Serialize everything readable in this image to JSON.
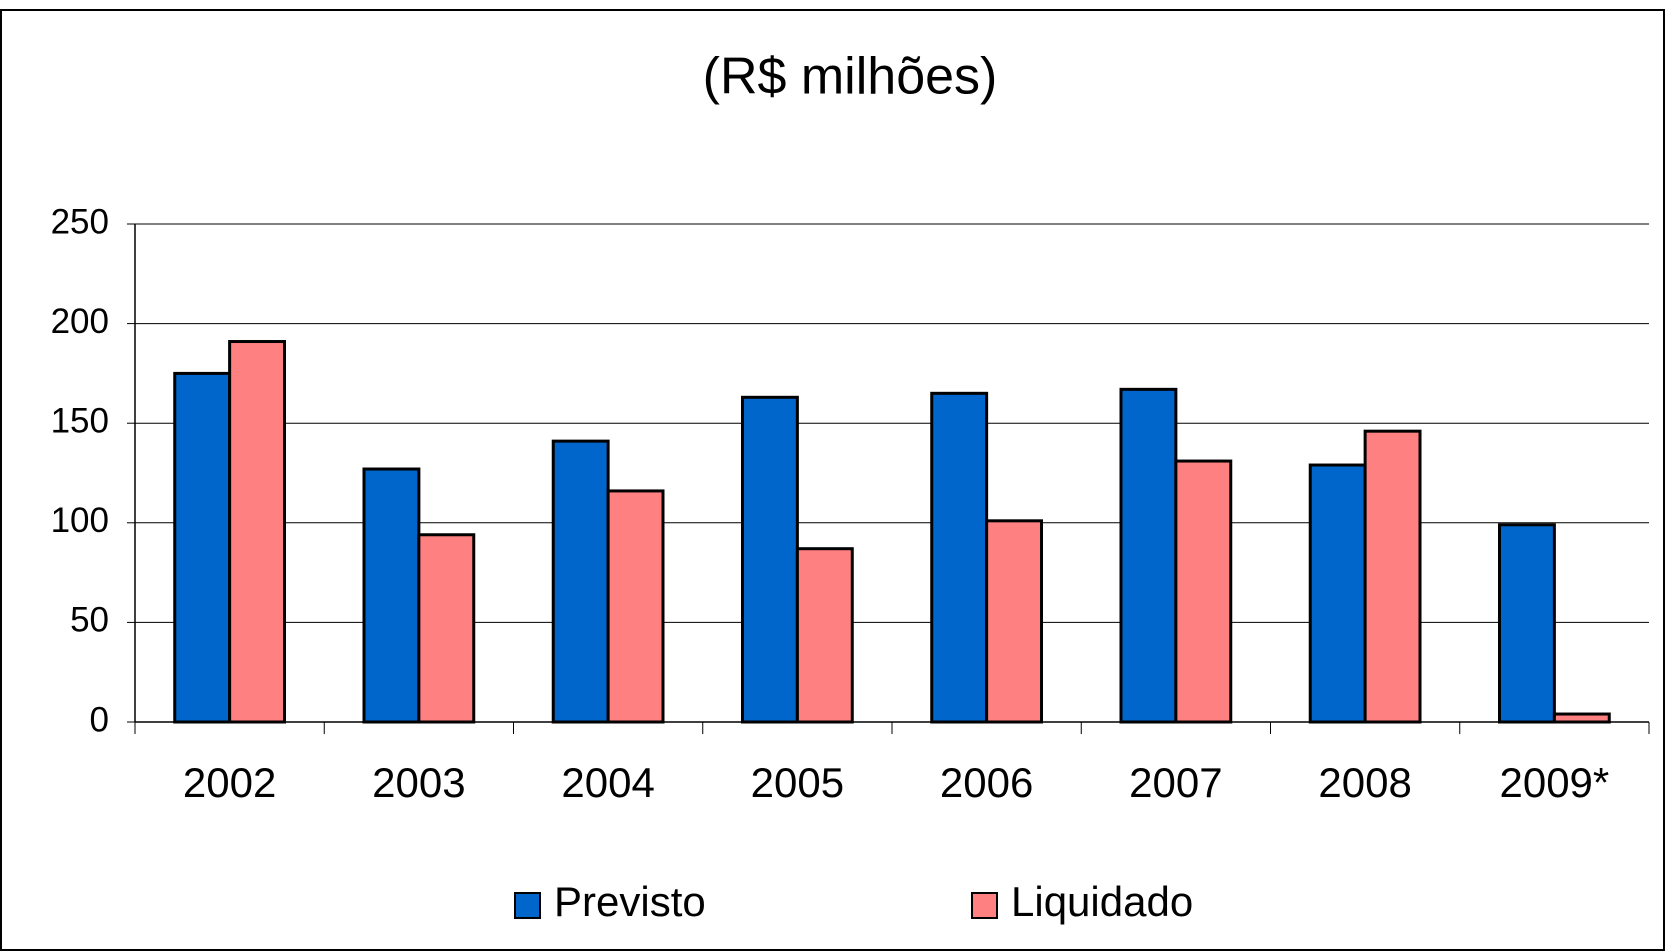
{
  "chart_data": {
    "type": "bar",
    "title": "(R$ milhões)",
    "categories": [
      "2002",
      "2003",
      "2004",
      "2005",
      "2006",
      "2007",
      "2008",
      "2009*"
    ],
    "series": [
      {
        "name": "Previsto",
        "color": "#0066cc",
        "values": [
          175,
          127,
          141,
          163,
          165,
          167,
          129,
          99
        ]
      },
      {
        "name": "Liquidado",
        "color": "#ff8080",
        "values": [
          191,
          94,
          116,
          87,
          101,
          131,
          146,
          4
        ]
      }
    ],
    "ylim": [
      0,
      250
    ],
    "yticks": [
      0,
      50,
      100,
      150,
      200,
      250
    ],
    "grid": true,
    "legend": "bottom"
  }
}
